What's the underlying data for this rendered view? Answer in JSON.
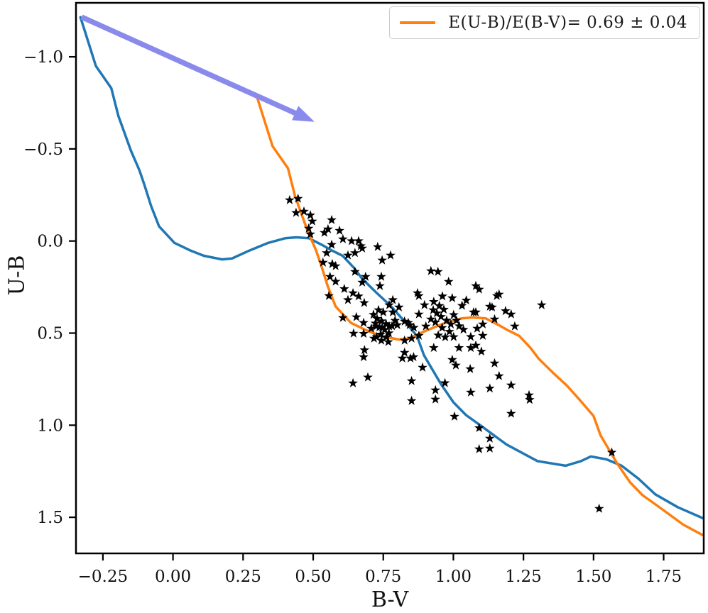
{
  "chart_data": {
    "type": "scatter",
    "title": "",
    "xlabel": "B-V",
    "ylabel": "U-B",
    "xlim": [
      -0.346,
      1.893
    ],
    "ylim_top": -1.293,
    "ylim_bottom": 1.696,
    "y_axis_inverted": true,
    "grid": false,
    "background": "#ffffff",
    "axis_color": "#000000",
    "tick_font_size": 23,
    "xticks": {
      "values": [
        -0.25,
        0.0,
        0.25,
        0.5,
        0.75,
        1.0,
        1.25,
        1.5,
        1.75
      ],
      "labels": [
        "−0.25",
        "0.00",
        "0.25",
        "0.50",
        "0.75",
        "1.00",
        "1.25",
        "1.50",
        "1.75"
      ]
    },
    "yticks": {
      "values": [
        -1.0,
        -0.5,
        0.0,
        0.5,
        1.0,
        1.5
      ],
      "labels": [
        "−1.0",
        "−0.5",
        "0.0",
        "0.5",
        "1.0",
        "1.5"
      ]
    },
    "legend": {
      "position": "upper right",
      "label": "E(U-B)/E(B-V)= 0.69 ± 0.04",
      "swatch_color": "#ff7f0e"
    },
    "series": [
      {
        "name": "intrinsic-zams-curve",
        "type": "line",
        "color": "#1f77b4",
        "width": 3.5,
        "points": [
          [
            -0.33,
            -1.215
          ],
          [
            -0.275,
            -0.95
          ],
          [
            -0.22,
            -0.83
          ],
          [
            -0.195,
            -0.68
          ],
          [
            -0.15,
            -0.49
          ],
          [
            -0.12,
            -0.385
          ],
          [
            -0.103,
            -0.31
          ],
          [
            -0.078,
            -0.19
          ],
          [
            -0.05,
            -0.08
          ],
          [
            0.005,
            0.01
          ],
          [
            0.06,
            0.05
          ],
          [
            0.11,
            0.08
          ],
          [
            0.175,
            0.1
          ],
          [
            0.21,
            0.095
          ],
          [
            0.275,
            0.05
          ],
          [
            0.34,
            0.01
          ],
          [
            0.4,
            -0.015
          ],
          [
            0.44,
            -0.02
          ],
          [
            0.485,
            -0.015
          ],
          [
            0.53,
            0.02
          ],
          [
            0.565,
            0.05
          ],
          [
            0.605,
            0.08
          ],
          [
            0.645,
            0.145
          ],
          [
            0.675,
            0.205
          ],
          [
            0.725,
            0.28
          ],
          [
            0.775,
            0.35
          ],
          [
            0.825,
            0.435
          ],
          [
            0.87,
            0.515
          ],
          [
            0.895,
            0.62
          ],
          [
            0.955,
            0.775
          ],
          [
            1.0,
            0.875
          ],
          [
            1.045,
            0.945
          ],
          [
            1.1,
            1.005
          ],
          [
            1.19,
            1.105
          ],
          [
            1.3,
            1.195
          ],
          [
            1.4,
            1.22
          ],
          [
            1.455,
            1.195
          ],
          [
            1.49,
            1.17
          ],
          [
            1.545,
            1.185
          ],
          [
            1.6,
            1.22
          ],
          [
            1.66,
            1.29
          ],
          [
            1.72,
            1.375
          ],
          [
            1.8,
            1.445
          ],
          [
            1.89,
            1.505
          ]
        ]
      },
      {
        "name": "reddened-zams-curve",
        "type": "line",
        "color": "#ff7f0e",
        "width": 3.5,
        "points": [
          [
            0.3,
            -0.78
          ],
          [
            0.355,
            -0.515
          ],
          [
            0.41,
            -0.395
          ],
          [
            0.435,
            -0.245
          ],
          [
            0.48,
            -0.055
          ],
          [
            0.51,
            0.05
          ],
          [
            0.527,
            0.125
          ],
          [
            0.552,
            0.245
          ],
          [
            0.58,
            0.355
          ],
          [
            0.635,
            0.445
          ],
          [
            0.69,
            0.485
          ],
          [
            0.74,
            0.515
          ],
          [
            0.805,
            0.535
          ],
          [
            0.84,
            0.53
          ],
          [
            0.905,
            0.485
          ],
          [
            0.97,
            0.445
          ],
          [
            1.03,
            0.42
          ],
          [
            1.07,
            0.415
          ],
          [
            1.115,
            0.42
          ],
          [
            1.16,
            0.455
          ],
          [
            1.195,
            0.485
          ],
          [
            1.235,
            0.515
          ],
          [
            1.275,
            0.58
          ],
          [
            1.305,
            0.64
          ],
          [
            1.355,
            0.715
          ],
          [
            1.405,
            0.785
          ],
          [
            1.455,
            0.87
          ],
          [
            1.5,
            0.95
          ],
          [
            1.525,
            1.055
          ],
          [
            1.585,
            1.21
          ],
          [
            1.63,
            1.31
          ],
          [
            1.675,
            1.38
          ],
          [
            1.73,
            1.44
          ],
          [
            1.82,
            1.54
          ],
          [
            1.93,
            1.63
          ]
        ]
      },
      {
        "name": "cluster-stars",
        "type": "scatter",
        "marker": "star",
        "color": "#000000",
        "size": 7.2,
        "points": [
          [
            0.416,
            -0.222
          ],
          [
            0.446,
            -0.23
          ],
          [
            0.439,
            -0.153
          ],
          [
            0.467,
            -0.16
          ],
          [
            0.49,
            -0.14
          ],
          [
            0.497,
            -0.107
          ],
          [
            0.484,
            -0.068
          ],
          [
            0.49,
            -0.037
          ],
          [
            0.566,
            -0.114
          ],
          [
            0.553,
            -0.064
          ],
          [
            0.54,
            -0.045
          ],
          [
            0.594,
            -0.056
          ],
          [
            0.606,
            -0.01
          ],
          [
            0.637,
            0.0
          ],
          [
            0.662,
            0.0
          ],
          [
            0.67,
            0.027
          ],
          [
            0.649,
            0.065
          ],
          [
            0.624,
            0.078
          ],
          [
            0.675,
            0.04
          ],
          [
            0.73,
            0.032
          ],
          [
            0.746,
            0.105
          ],
          [
            0.566,
            0.02
          ],
          [
            0.548,
            0.065
          ],
          [
            0.535,
            0.117
          ],
          [
            0.568,
            0.125
          ],
          [
            0.58,
            0.136
          ],
          [
            0.56,
            0.194
          ],
          [
            0.58,
            0.22
          ],
          [
            0.611,
            0.26
          ],
          [
            0.649,
            0.167
          ],
          [
            0.687,
            0.194
          ],
          [
            0.675,
            0.225
          ],
          [
            0.743,
            0.194
          ],
          [
            0.738,
            0.244
          ],
          [
            0.642,
            0.283
          ],
          [
            0.662,
            0.3
          ],
          [
            0.624,
            0.32
          ],
          [
            0.682,
            0.336
          ],
          [
            0.556,
            0.298
          ],
          [
            0.776,
            0.078
          ],
          [
            0.784,
            0.32
          ],
          [
            0.945,
            0.167
          ],
          [
            0.606,
            0.417
          ],
          [
            0.654,
            0.413
          ],
          [
            0.68,
            0.444
          ],
          [
            0.707,
            0.475
          ],
          [
            0.733,
            0.375
          ],
          [
            0.75,
            0.387
          ],
          [
            0.771,
            0.348
          ],
          [
            0.784,
            0.387
          ],
          [
            0.806,
            0.36
          ],
          [
            0.725,
            0.463
          ],
          [
            0.746,
            0.47
          ],
          [
            0.771,
            0.463
          ],
          [
            0.8,
            0.456
          ],
          [
            0.826,
            0.437
          ],
          [
            0.844,
            0.456
          ],
          [
            0.859,
            0.47
          ],
          [
            0.644,
            0.502
          ],
          [
            0.717,
            0.529
          ],
          [
            0.743,
            0.54
          ],
          [
            0.768,
            0.548
          ],
          [
            0.826,
            0.54
          ],
          [
            0.851,
            0.529
          ],
          [
            0.877,
            0.514
          ],
          [
            0.902,
            0.463
          ],
          [
            0.92,
            0.425
          ],
          [
            0.928,
            0.375
          ],
          [
            0.872,
            0.283
          ],
          [
            0.897,
            0.348
          ],
          [
            0.818,
            0.637
          ],
          [
            0.715,
            0.4
          ],
          [
            0.728,
            0.422
          ],
          [
            0.744,
            0.435
          ],
          [
            0.76,
            0.45
          ],
          [
            0.722,
            0.447
          ],
          [
            0.736,
            0.468
          ],
          [
            0.755,
            0.482
          ],
          [
            0.77,
            0.5
          ],
          [
            0.741,
            0.507
          ],
          [
            0.726,
            0.521
          ],
          [
            0.761,
            0.522
          ],
          [
            0.781,
            0.462
          ],
          [
            0.792,
            0.432
          ],
          [
            0.839,
            0.444
          ],
          [
            0.877,
            0.398
          ],
          [
            0.92,
            0.163
          ],
          [
            0.983,
            0.221
          ],
          [
            0.877,
            0.298
          ],
          [
            0.961,
            0.3
          ],
          [
            0.996,
            0.31
          ],
          [
            1.092,
            0.263
          ],
          [
            0.93,
            0.33
          ],
          [
            0.95,
            0.352
          ],
          [
            0.966,
            0.372
          ],
          [
            0.941,
            0.392
          ],
          [
            0.956,
            0.411
          ],
          [
            0.976,
            0.431
          ],
          [
            0.991,
            0.452
          ],
          [
            0.936,
            0.441
          ],
          [
            0.96,
            0.471
          ],
          [
            0.986,
            0.492
          ],
          [
            1.001,
            0.401
          ],
          [
            1.011,
            0.431
          ],
          [
            1.021,
            0.462
          ],
          [
            1.036,
            0.481
          ],
          [
            0.946,
            0.512
          ],
          [
            0.971,
            0.522
          ],
          [
            1.001,
            0.521
          ],
          [
            1.08,
            0.387
          ],
          [
            1.085,
            0.475
          ],
          [
            1.062,
            0.52
          ],
          [
            1.105,
            0.514
          ],
          [
            1.031,
            0.351
          ],
          [
            1.046,
            0.322
          ],
          [
            1.072,
            0.387
          ],
          [
            1.105,
            0.452
          ],
          [
            1.147,
            0.425
          ],
          [
            1.155,
            0.298
          ],
          [
            1.08,
            0.244
          ],
          [
            1.13,
            0.356
          ],
          [
            1.02,
            0.58
          ],
          [
            1.08,
            0.567
          ],
          [
            1.163,
            0.29
          ],
          [
            1.138,
            0.36
          ],
          [
            1.186,
            0.38
          ],
          [
            1.206,
            0.398
          ],
          [
            1.219,
            0.463
          ],
          [
            1.315,
            0.348
          ],
          [
            0.68,
            0.63
          ],
          [
            0.695,
            0.74
          ],
          [
            0.642,
            0.772
          ],
          [
            0.851,
            0.76
          ],
          [
            0.936,
            0.81
          ],
          [
            0.936,
            0.86
          ],
          [
            0.851,
            0.868
          ],
          [
            0.97,
            0.771
          ],
          [
            1.004,
            0.953
          ],
          [
            1.062,
            0.822
          ],
          [
            1.13,
            0.8
          ],
          [
            1.206,
            0.783
          ],
          [
            1.27,
            0.837
          ],
          [
            1.272,
            0.862
          ],
          [
            1.206,
            0.937
          ],
          [
            1.092,
            1.015
          ],
          [
            1.13,
            1.072
          ],
          [
            1.092,
            1.13
          ],
          [
            1.13,
            1.126
          ],
          [
            1.009,
            0.675
          ],
          [
            1.06,
            0.695
          ],
          [
            1.062,
            0.58
          ],
          [
            1.1,
            0.6
          ],
          [
            1.147,
            0.664
          ],
          [
            1.163,
            0.733
          ],
          [
            0.93,
            0.58
          ],
          [
            0.996,
            0.645
          ],
          [
            0.858,
            0.63
          ],
          [
            0.89,
            0.687
          ],
          [
            0.683,
            0.592
          ],
          [
            0.826,
            0.606
          ],
          [
            0.847,
            0.637
          ],
          [
            0.68,
            0.503
          ],
          [
            1.52,
            1.453
          ],
          [
            1.565,
            1.148
          ]
        ]
      }
    ],
    "annotations": [
      {
        "name": "reddening-vector-arrow",
        "type": "arrow",
        "from": [
          -0.326,
          -1.216
        ],
        "to": [
          0.505,
          -0.647
        ],
        "color": "#8a8aec",
        "shaft_width": 7.5,
        "head_length": 30,
        "head_width": 22
      }
    ]
  }
}
